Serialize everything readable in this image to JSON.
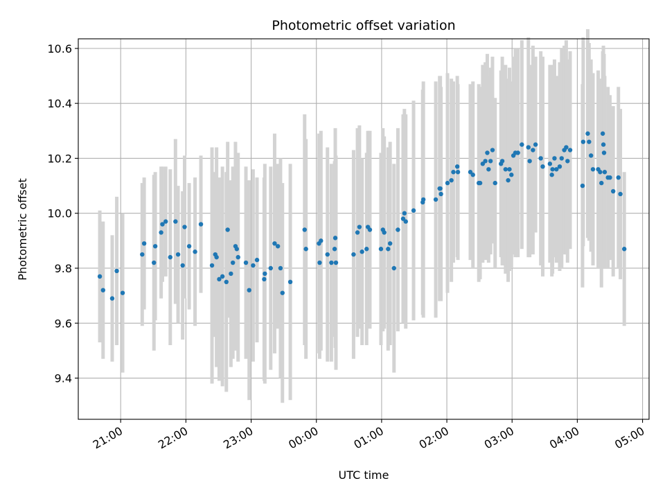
{
  "chart_data": {
    "type": "scatter",
    "title": "Photometric offset variation",
    "xlabel": "UTC time",
    "ylabel": "Photometric offset",
    "x_unit": "UTC clock time, hours, continuing past midnight (24 = 00:00 next day)",
    "xlim": [
      20.35,
      29.1
    ],
    "ylim": [
      9.25,
      10.635
    ],
    "grid": true,
    "x_tick_values": [
      21,
      22,
      23,
      24,
      25,
      26,
      27,
      28,
      29
    ],
    "x_ticks": [
      "21:00",
      "22:00",
      "23:00",
      "00:00",
      "01:00",
      "02:00",
      "03:00",
      "04:00",
      "05:00"
    ],
    "y_ticks": [
      "9.4",
      "9.6",
      "9.8",
      "10.0",
      "10.2",
      "10.4",
      "10.6"
    ],
    "colors": {
      "point": "#1f77b4",
      "errorbar": "#d3d3d3",
      "grid": "#b0b0b0"
    },
    "points": [
      [
        20.68,
        9.77,
        0.24
      ],
      [
        20.73,
        9.72,
        0.25
      ],
      [
        20.87,
        9.69,
        0.23
      ],
      [
        20.94,
        9.79,
        0.27
      ],
      [
        21.03,
        9.71,
        0.29
      ],
      [
        21.33,
        9.85,
        0.26
      ],
      [
        21.36,
        9.89,
        0.24
      ],
      [
        21.51,
        9.82,
        0.32
      ],
      [
        21.53,
        9.88,
        0.27
      ],
      [
        21.62,
        9.93,
        0.24
      ],
      [
        21.64,
        9.96,
        0.21
      ],
      [
        21.69,
        9.97,
        0.2
      ],
      [
        21.76,
        9.84,
        0.32
      ],
      [
        21.84,
        9.97,
        0.3
      ],
      [
        21.88,
        9.85,
        0.25
      ],
      [
        21.95,
        9.81,
        0.27
      ],
      [
        21.98,
        9.95,
        0.26
      ],
      [
        22.05,
        9.88,
        0.23
      ],
      [
        22.14,
        9.86,
        0.27
      ],
      [
        22.23,
        9.96,
        0.25
      ],
      [
        22.4,
        9.81,
        0.43
      ],
      [
        22.45,
        9.85,
        0.3
      ],
      [
        22.47,
        9.84,
        0.4
      ],
      [
        22.51,
        9.76,
        0.37
      ],
      [
        22.56,
        9.77,
        0.4
      ],
      [
        22.62,
        9.75,
        0.4
      ],
      [
        22.64,
        9.94,
        0.32
      ],
      [
        22.69,
        9.78,
        0.34
      ],
      [
        22.72,
        9.82,
        0.35
      ],
      [
        22.76,
        9.88,
        0.38
      ],
      [
        22.78,
        9.87,
        0.3
      ],
      [
        22.8,
        9.84,
        0.38
      ],
      [
        22.92,
        9.82,
        0.35
      ],
      [
        22.97,
        9.72,
        0.4
      ],
      [
        23.03,
        9.81,
        0.35
      ],
      [
        23.09,
        9.83,
        0.3
      ],
      [
        23.2,
        9.76,
        0.37
      ],
      [
        23.21,
        9.78,
        0.4
      ],
      [
        23.3,
        9.8,
        0.37
      ],
      [
        23.36,
        9.89,
        0.4
      ],
      [
        23.41,
        9.88,
        0.3
      ],
      [
        23.45,
        9.8,
        0.4
      ],
      [
        23.48,
        9.71,
        0.4
      ],
      [
        23.6,
        9.75,
        0.43
      ],
      [
        23.82,
        9.94,
        0.42
      ],
      [
        23.84,
        9.87,
        0.4
      ],
      [
        24.04,
        9.89,
        0.4
      ],
      [
        24.05,
        9.82,
        0.35
      ],
      [
        24.07,
        9.9,
        0.4
      ],
      [
        24.17,
        9.85,
        0.39
      ],
      [
        24.23,
        9.82,
        0.36
      ],
      [
        24.28,
        9.87,
        0.32
      ],
      [
        24.29,
        9.91,
        0.4
      ],
      [
        24.3,
        9.82,
        0.39
      ],
      [
        24.57,
        9.85,
        0.38
      ],
      [
        24.63,
        9.93,
        0.38
      ],
      [
        24.66,
        9.95,
        0.37
      ],
      [
        24.7,
        9.86,
        0.34
      ],
      [
        24.77,
        9.87,
        0.35
      ],
      [
        24.79,
        9.95,
        0.35
      ],
      [
        24.82,
        9.94,
        0.36
      ],
      [
        24.99,
        9.87,
        0.35
      ],
      [
        25.02,
        9.94,
        0.37
      ],
      [
        25.04,
        9.93,
        0.35
      ],
      [
        25.1,
        9.87,
        0.37
      ],
      [
        25.13,
        9.89,
        0.37
      ],
      [
        25.19,
        9.8,
        0.38
      ],
      [
        25.25,
        9.94,
        0.37
      ],
      [
        25.33,
        9.98,
        0.38
      ],
      [
        25.35,
        10.0,
        0.38
      ],
      [
        25.37,
        9.97,
        0.39
      ],
      [
        25.49,
        10.01,
        0.4
      ],
      [
        25.63,
        10.04,
        0.41
      ],
      [
        25.64,
        10.05,
        0.43
      ],
      [
        25.83,
        10.05,
        0.43
      ],
      [
        25.89,
        10.09,
        0.41
      ],
      [
        25.9,
        10.09,
        0.41
      ],
      [
        25.91,
        10.07,
        0.39
      ],
      [
        26.01,
        10.11,
        0.4
      ],
      [
        26.07,
        10.12,
        0.37
      ],
      [
        26.1,
        10.15,
        0.33
      ],
      [
        26.16,
        10.17,
        0.33
      ],
      [
        26.17,
        10.15,
        0.32
      ],
      [
        26.36,
        10.15,
        0.32
      ],
      [
        26.4,
        10.14,
        0.34
      ],
      [
        26.49,
        10.11,
        0.36
      ],
      [
        26.51,
        10.11,
        0.35
      ],
      [
        26.55,
        10.18,
        0.36
      ],
      [
        26.59,
        10.19,
        0.36
      ],
      [
        26.62,
        10.22,
        0.36
      ],
      [
        26.64,
        10.16,
        0.34
      ],
      [
        26.67,
        10.19,
        0.34
      ],
      [
        26.7,
        10.23,
        0.34
      ],
      [
        26.74,
        10.11,
        0.31
      ],
      [
        26.83,
        10.18,
        0.34
      ],
      [
        26.85,
        10.19,
        0.38
      ],
      [
        26.9,
        10.16,
        0.38
      ],
      [
        26.94,
        10.12,
        0.37
      ],
      [
        26.96,
        10.16,
        0.37
      ],
      [
        26.99,
        10.14,
        0.34
      ],
      [
        27.02,
        10.21,
        0.36
      ],
      [
        27.05,
        10.22,
        0.38
      ],
      [
        27.09,
        10.22,
        0.38
      ],
      [
        27.15,
        10.25,
        0.38
      ],
      [
        27.25,
        10.24,
        0.4
      ],
      [
        27.27,
        10.19,
        0.35
      ],
      [
        27.32,
        10.23,
        0.38
      ],
      [
        27.36,
        10.25,
        0.32
      ],
      [
        27.44,
        10.2,
        0.39
      ],
      [
        27.47,
        10.17,
        0.4
      ],
      [
        27.58,
        10.18,
        0.36
      ],
      [
        27.61,
        10.14,
        0.37
      ],
      [
        27.62,
        10.16,
        0.38
      ],
      [
        27.65,
        10.2,
        0.36
      ],
      [
        27.68,
        10.16,
        0.34
      ],
      [
        27.73,
        10.17,
        0.38
      ],
      [
        27.76,
        10.2,
        0.4
      ],
      [
        27.8,
        10.23,
        0.38
      ],
      [
        27.83,
        10.24,
        0.39
      ],
      [
        27.85,
        10.19,
        0.37
      ],
      [
        27.89,
        10.23,
        0.36
      ],
      [
        28.08,
        10.1,
        0.37
      ],
      [
        28.09,
        10.26,
        0.38
      ],
      [
        28.16,
        10.29,
        0.38
      ],
      [
        28.18,
        10.26,
        0.36
      ],
      [
        28.21,
        10.21,
        0.35
      ],
      [
        28.24,
        10.16,
        0.35
      ],
      [
        28.32,
        10.16,
        0.36
      ],
      [
        28.35,
        10.15,
        0.34
      ],
      [
        28.37,
        10.11,
        0.38
      ],
      [
        28.39,
        10.29,
        0.3
      ],
      [
        28.4,
        10.25,
        0.36
      ],
      [
        28.41,
        10.22,
        0.36
      ],
      [
        28.42,
        10.15,
        0.35
      ],
      [
        28.47,
        10.13,
        0.33
      ],
      [
        28.5,
        10.13,
        0.3
      ],
      [
        28.55,
        10.08,
        0.31
      ],
      [
        28.63,
        10.13,
        0.33
      ],
      [
        28.66,
        10.07,
        0.31
      ],
      [
        28.72,
        9.87,
        0.28
      ]
    ]
  }
}
